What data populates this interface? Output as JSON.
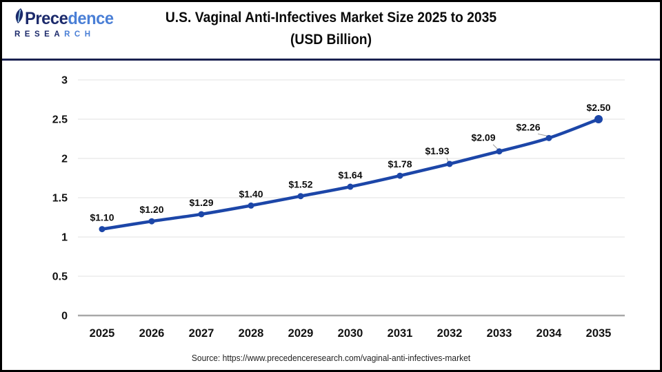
{
  "header": {
    "logo": {
      "word_dark": "Prece",
      "word_light": "dence",
      "sub_dark": "RESEA",
      "sub_light": "RCH"
    },
    "title_line1": "U.S. Vaginal Anti-Infectives Market Size 2025 to 2035",
    "title_line2": "(USD Billion)"
  },
  "chart_data": {
    "type": "line",
    "title": "U.S. Vaginal Anti-Infectives Market Size 2025 to 2035 (USD Billion)",
    "categories": [
      "2025",
      "2026",
      "2027",
      "2028",
      "2029",
      "2030",
      "2031",
      "2032",
      "2033",
      "2034",
      "2035"
    ],
    "values": [
      1.1,
      1.2,
      1.29,
      1.4,
      1.52,
      1.64,
      1.78,
      1.93,
      2.09,
      2.26,
      2.5
    ],
    "labels": [
      "$1.10",
      "$1.20",
      "$1.29",
      "$1.40",
      "$1.52",
      "$1.64",
      "$1.78",
      "$1.93",
      "$2.09",
      "$2.26",
      "$2.50"
    ],
    "xlabel": "",
    "ylabel": "",
    "ylim": [
      0,
      3
    ],
    "yticks": [
      0,
      0.5,
      1,
      1.5,
      2,
      2.5,
      3
    ],
    "ytick_labels": [
      "0",
      "0.5",
      "1",
      "1.5",
      "2",
      "2.5",
      "3"
    ],
    "grid": true,
    "legend": "none",
    "line_color": "#1c46a8",
    "grid_color": "#e8e8e8",
    "axis_color": "#a8a8a8",
    "label_color": "#0d0d0d"
  },
  "footer": {
    "source": "Source: https://www.precedenceresearch.com/vaginal-anti-infectives-market"
  }
}
